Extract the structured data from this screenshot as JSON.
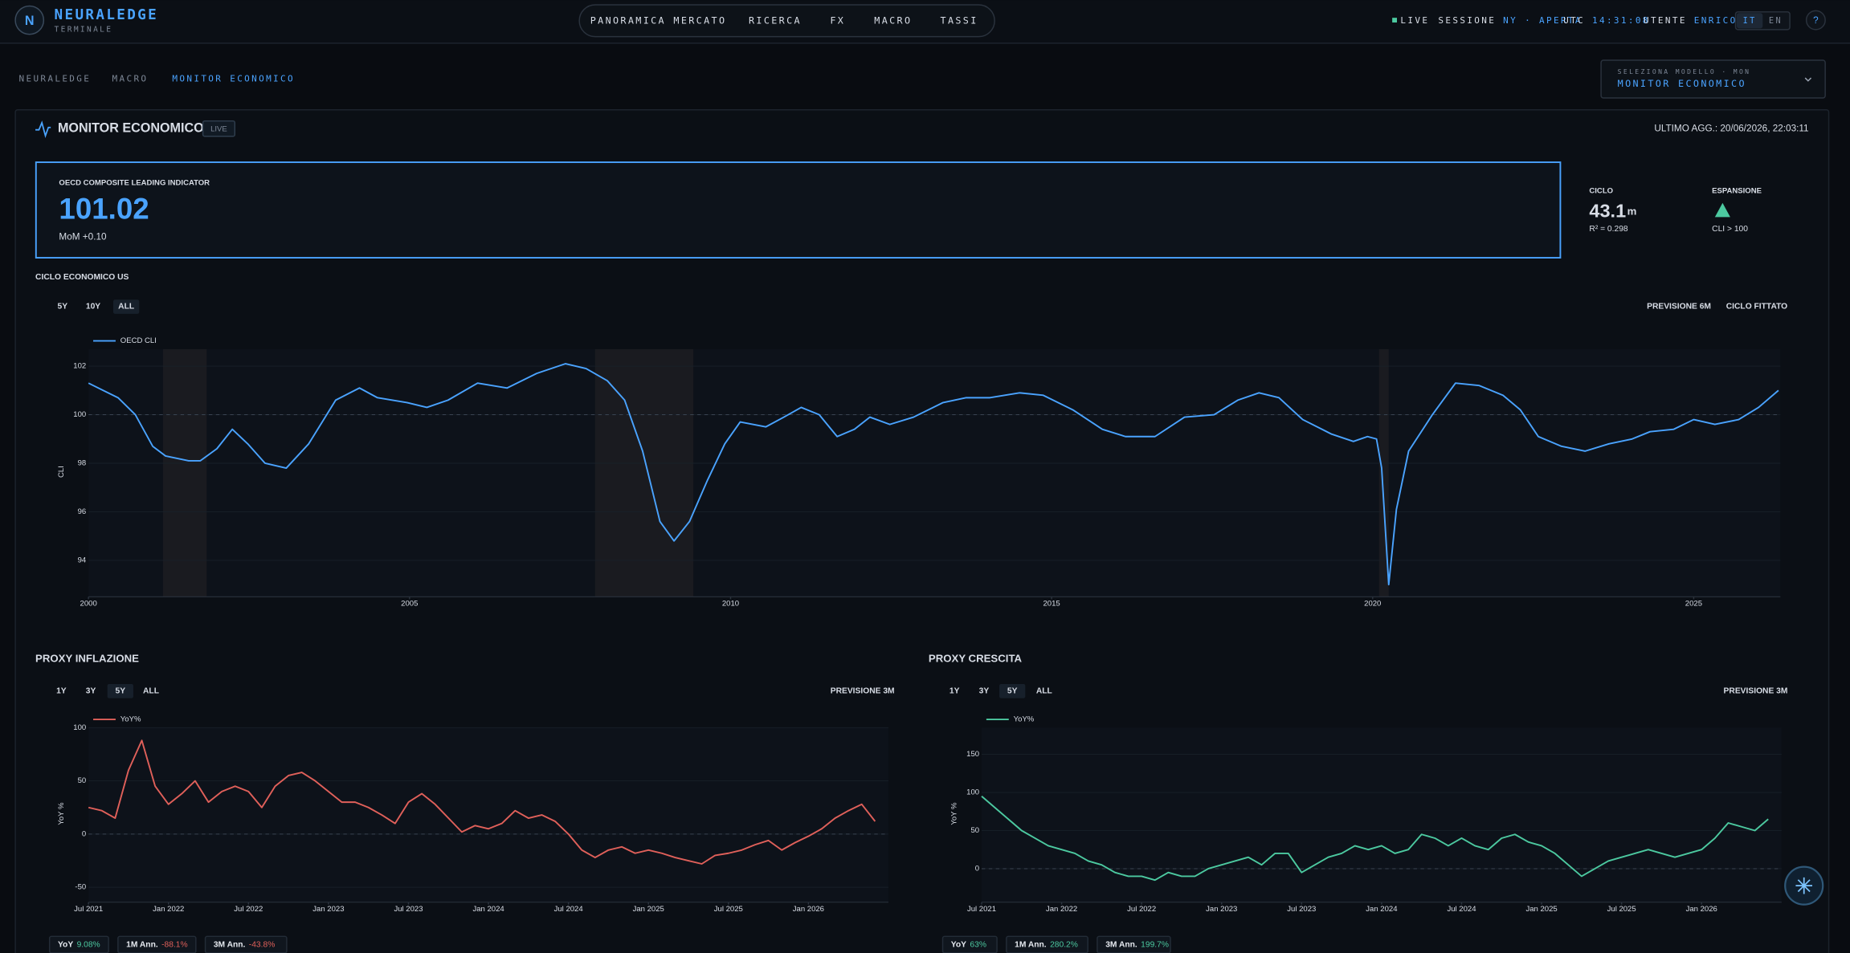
{
  "header": {
    "brand": "NEURALEDGE",
    "subtitle": "TERMINALE",
    "nav": [
      "PANORAMICA MERCATO",
      "RICERCA",
      "FX",
      "MACRO",
      "TASSI"
    ],
    "status": {
      "live": "LIVE",
      "session_label": "SESSIONE",
      "session_value": "NY · APERTA",
      "utc_label": "UTC",
      "utc_value": "14:31:08",
      "user_label": "UTENTE",
      "user_value": "ENRICO"
    },
    "languages": [
      "IT",
      "EN"
    ],
    "help": "?"
  },
  "breadcrumb": [
    "NEURALEDGE",
    "MACRO",
    "MONITOR ECONOMICO"
  ],
  "model_selector": {
    "label": "SELEZIONA MODELLO · MON",
    "value": "MONITOR ECONOMICO"
  },
  "panel": {
    "title": "MONITOR ECONOMICO",
    "badge": "LIVE",
    "updated": "ULTIMO AGG.: 20/06/2026, 22:03:11"
  },
  "indicator": {
    "label": "OECD COMPOSITE LEADING INDICATOR",
    "value": "101.02",
    "change": "MoM +0.10"
  },
  "cycle": {
    "label": "CICLO",
    "value": "43.1",
    "unit": "m",
    "r2": "R² = 0.298"
  },
  "regime": {
    "label": "ESPANSIONE",
    "note": "CLI > 100",
    "color": "#4cc9a0"
  },
  "chart_data": [
    {
      "type": "line",
      "title": "CICLO ECONOMICO US",
      "ranges": [
        "5Y",
        "10Y",
        "ALL"
      ],
      "active_range": "ALL",
      "options": [
        "PREVISIONE 6M",
        "CICLO FITTATO"
      ],
      "y_label": "CLI",
      "x": [
        2000,
        2000.46,
        2000.73,
        2001.0,
        2001.2,
        2001.56,
        2001.74,
        2002.0,
        2002.24,
        2002.48,
        2002.75,
        2003.08,
        2003.43,
        2003.85,
        2004.22,
        2004.5,
        2004.96,
        2005.27,
        2005.6,
        2006.06,
        2006.52,
        2006.98,
        2007.43,
        2007.75,
        2008.08,
        2008.35,
        2008.63,
        2008.9,
        2009.12,
        2009.36,
        2009.64,
        2009.91,
        2010.15,
        2010.55,
        2010.83,
        2011.1,
        2011.38,
        2011.66,
        2011.93,
        2012.17,
        2012.48,
        2012.85,
        2013.31,
        2013.67,
        2014.04,
        2014.5,
        2014.87,
        2015.33,
        2015.79,
        2016.15,
        2016.61,
        2017.07,
        2017.53,
        2017.9,
        2018.23,
        2018.54,
        2018.91,
        2019.36,
        2019.7,
        2019.92,
        2020.06,
        2020.14,
        2020.25,
        2020.37,
        2020.56,
        2020.93,
        2021.29,
        2021.66,
        2022.03,
        2022.3,
        2022.58,
        2022.94,
        2023.31,
        2023.68,
        2024.04,
        2024.32,
        2024.69,
        2025.0,
        2025.33,
        2025.7,
        2026.01,
        2026.32
      ],
      "series": [
        {
          "name": "OECD CLI",
          "color": "#4aa3ff",
          "values": [
            101.3,
            100.7,
            100.0,
            98.7,
            98.3,
            98.1,
            98.1,
            98.6,
            99.4,
            98.8,
            98.0,
            97.8,
            98.8,
            100.6,
            101.1,
            100.7,
            100.5,
            100.3,
            100.6,
            101.3,
            101.1,
            101.7,
            102.1,
            101.9,
            101.4,
            100.6,
            98.5,
            95.6,
            94.8,
            95.6,
            97.3,
            98.8,
            99.7,
            99.5,
            99.9,
            100.3,
            100.0,
            99.1,
            99.4,
            99.9,
            99.6,
            99.9,
            100.5,
            100.7,
            100.7,
            100.9,
            100.8,
            100.2,
            99.4,
            99.1,
            99.1,
            99.9,
            100.0,
            100.6,
            100.9,
            100.7,
            99.8,
            99.2,
            98.9,
            99.1,
            99.0,
            97.8,
            93.0,
            96.1,
            98.5,
            100.0,
            101.3,
            101.2,
            100.8,
            100.2,
            99.1,
            98.7,
            98.5,
            98.8,
            99.0,
            99.3,
            99.4,
            99.8,
            99.6,
            99.8,
            100.3,
            101.0
          ]
        }
      ],
      "shaded_periods": [
        [
          2001.16,
          2001.84
        ],
        [
          2007.89,
          2009.42
        ],
        [
          2020.1,
          2020.25
        ]
      ],
      "xlim": [
        2000,
        2026.35
      ],
      "xticks": [
        2000,
        2005,
        2010,
        2015,
        2020,
        2025
      ],
      "ylim": [
        92.5,
        102.7
      ],
      "yticks": [
        94,
        96,
        98,
        100,
        102
      ],
      "reference_line": 100,
      "grid": true
    },
    {
      "type": "line",
      "title": "PROXY INFLAZIONE",
      "ranges": [
        "1Y",
        "3Y",
        "5Y",
        "ALL"
      ],
      "active_range": "5Y",
      "options": [
        "PREVISIONE 3M"
      ],
      "y_label": "YoY %",
      "x": [
        "2021-07",
        "2021-08",
        "2021-09",
        "2021-10",
        "2021-11",
        "2021-12",
        "2022-01",
        "2022-02",
        "2022-03",
        "2022-04",
        "2022-05",
        "2022-06",
        "2022-07",
        "2022-08",
        "2022-09",
        "2022-10",
        "2022-11",
        "2022-12",
        "2023-01",
        "2023-02",
        "2023-03",
        "2023-04",
        "2023-05",
        "2023-06",
        "2023-07",
        "2023-08",
        "2023-09",
        "2023-10",
        "2023-11",
        "2023-12",
        "2024-01",
        "2024-02",
        "2024-03",
        "2024-04",
        "2024-05",
        "2024-06",
        "2024-07",
        "2024-08",
        "2024-09",
        "2024-10",
        "2024-11",
        "2024-12",
        "2025-01",
        "2025-02",
        "2025-03",
        "2025-04",
        "2025-05",
        "2025-06",
        "2025-07",
        "2025-08",
        "2025-09",
        "2025-10",
        "2025-11",
        "2025-12",
        "2026-01",
        "2026-02",
        "2026-03",
        "2026-04",
        "2026-05",
        "2026-06"
      ],
      "series": [
        {
          "name": "YoY%",
          "color": "#e0605a",
          "values": [
            25,
            22,
            15,
            60,
            88,
            45,
            28,
            38,
            50,
            30,
            40,
            45,
            40,
            25,
            45,
            55,
            58,
            50,
            40,
            30,
            30,
            25,
            18,
            10,
            30,
            38,
            28,
            15,
            2,
            8,
            5,
            10,
            22,
            15,
            18,
            12,
            0,
            -15,
            -22,
            -15,
            -12,
            -18,
            -15,
            -18,
            -22,
            -25,
            -28,
            -20,
            -18,
            -15,
            -10,
            -6,
            -15,
            -8,
            -2,
            5,
            15,
            22,
            28,
            12
          ]
        }
      ],
      "xlim": [
        "2021-07",
        "2026-07"
      ],
      "xticks": [
        {
          "value": "2021-07",
          "label": "Jul 2021"
        },
        {
          "value": "2022-01",
          "label": "Jan 2022"
        },
        {
          "value": "2022-07",
          "label": "Jul 2022"
        },
        {
          "value": "2023-01",
          "label": "Jan 2023"
        },
        {
          "value": "2023-07",
          "label": "Jul 2023"
        },
        {
          "value": "2024-01",
          "label": "Jan 2024"
        },
        {
          "value": "2024-07",
          "label": "Jul 2024"
        },
        {
          "value": "2025-01",
          "label": "Jan 2025"
        },
        {
          "value": "2025-07",
          "label": "Jul 2025"
        },
        {
          "value": "2026-01",
          "label": "Jan 2026"
        }
      ],
      "ylim": [
        -64,
        100
      ],
      "yticks": [
        -50,
        0,
        50,
        100
      ],
      "reference_line": 0,
      "grid": true,
      "stats": [
        {
          "label": "YoY",
          "value": "9.08%",
          "color": "#4cc9a0"
        },
        {
          "label": "1M Ann.",
          "value": "-88.1%",
          "color": "#e0605a"
        },
        {
          "label": "3M Ann.",
          "value": "-43.8%",
          "color": "#e0605a"
        }
      ]
    },
    {
      "type": "line",
      "title": "PROXY CRESCITA",
      "ranges": [
        "1Y",
        "3Y",
        "5Y",
        "ALL"
      ],
      "active_range": "5Y",
      "options": [
        "PREVISIONE 3M"
      ],
      "y_label": "YoY %",
      "x": [
        "2021-07",
        "2021-08",
        "2021-09",
        "2021-10",
        "2021-11",
        "2021-12",
        "2022-01",
        "2022-02",
        "2022-03",
        "2022-04",
        "2022-05",
        "2022-06",
        "2022-07",
        "2022-08",
        "2022-09",
        "2022-10",
        "2022-11",
        "2022-12",
        "2023-01",
        "2023-02",
        "2023-03",
        "2023-04",
        "2023-05",
        "2023-06",
        "2023-07",
        "2023-08",
        "2023-09",
        "2023-10",
        "2023-11",
        "2023-12",
        "2024-01",
        "2024-02",
        "2024-03",
        "2024-04",
        "2024-05",
        "2024-06",
        "2024-07",
        "2024-08",
        "2024-09",
        "2024-10",
        "2024-11",
        "2024-12",
        "2025-01",
        "2025-02",
        "2025-03",
        "2025-04",
        "2025-05",
        "2025-06",
        "2025-07",
        "2025-08",
        "2025-09",
        "2025-10",
        "2025-11",
        "2025-12",
        "2026-01",
        "2026-02",
        "2026-03",
        "2026-04",
        "2026-05",
        "2026-06"
      ],
      "series": [
        {
          "name": "YoY%",
          "color": "#4cc9a0",
          "values": [
            95,
            80,
            65,
            50,
            40,
            30,
            25,
            20,
            10,
            5,
            -5,
            -10,
            -10,
            -15,
            -5,
            -10,
            -10,
            0,
            5,
            10,
            15,
            5,
            20,
            20,
            -5,
            5,
            15,
            20,
            30,
            25,
            30,
            20,
            25,
            45,
            40,
            30,
            40,
            30,
            25,
            40,
            45,
            35,
            30,
            20,
            5,
            -10,
            0,
            10,
            15,
            20,
            25,
            20,
            15,
            20,
            25,
            40,
            60,
            55,
            50,
            65
          ]
        }
      ],
      "xlim": [
        "2021-07",
        "2026-07"
      ],
      "xticks": [
        {
          "value": "2021-07",
          "label": "Jul 2021"
        },
        {
          "value": "2022-01",
          "label": "Jan 2022"
        },
        {
          "value": "2022-07",
          "label": "Jul 2022"
        },
        {
          "value": "2023-01",
          "label": "Jan 2023"
        },
        {
          "value": "2023-07",
          "label": "Jul 2023"
        },
        {
          "value": "2024-01",
          "label": "Jan 2024"
        },
        {
          "value": "2024-07",
          "label": "Jul 2024"
        },
        {
          "value": "2025-01",
          "label": "Jan 2025"
        },
        {
          "value": "2025-07",
          "label": "Jul 2025"
        },
        {
          "value": "2026-01",
          "label": "Jan 2026"
        }
      ],
      "ylim": [
        -44,
        185
      ],
      "yticks": [
        0,
        50,
        100,
        150
      ],
      "reference_line": 0,
      "grid": true,
      "stats": [
        {
          "label": "YoY",
          "value": "63%",
          "color": "#4cc9a0"
        },
        {
          "label": "1M Ann.",
          "value": "280.2%",
          "color": "#4cc9a0"
        },
        {
          "label": "3M Ann.",
          "value": "199.7%",
          "color": "#4cc9a0"
        }
      ]
    }
  ]
}
